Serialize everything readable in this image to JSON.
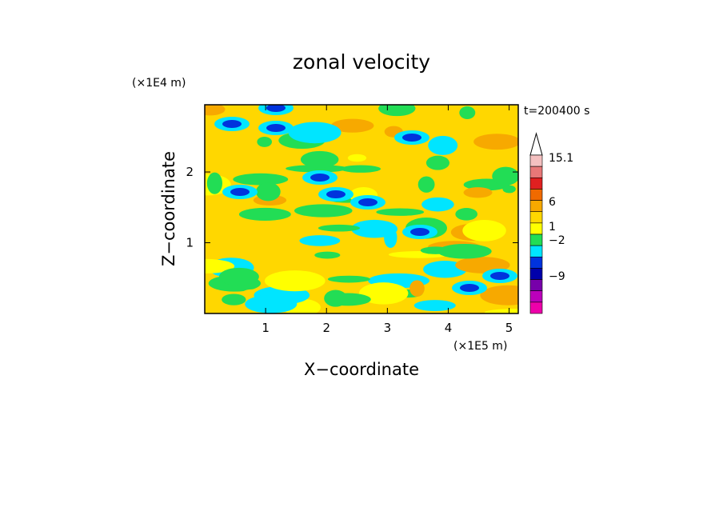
{
  "chart_data": {
    "type": "heatmap",
    "title": "zonal velocity",
    "xlabel": "X−coordinate",
    "ylabel": "Z−coordinate",
    "x_unit": "(×1E5 m)",
    "y_unit": "(×1E4 m)",
    "time_label": "t=200400 s",
    "xlim": [
      0,
      5.15
    ],
    "ylim": [
      0,
      2.95
    ],
    "x_ticks": [
      "1",
      "2",
      "3",
      "4",
      "5"
    ],
    "y_ticks": [
      "1",
      "2"
    ],
    "colorbar": {
      "labels": [
        "15.1",
        "6",
        "1",
        "−2",
        "−9"
      ],
      "colors": [
        "#f4c0c0",
        "#e87878",
        "#e02020",
        "#f06a00",
        "#f7a900",
        "#ffd700",
        "#ffff00",
        "#22dd55",
        "#00e5ff",
        "#0033dd",
        "#0000aa",
        "#7700aa",
        "#bb00bb",
        "#ee00aa"
      ]
    }
  }
}
